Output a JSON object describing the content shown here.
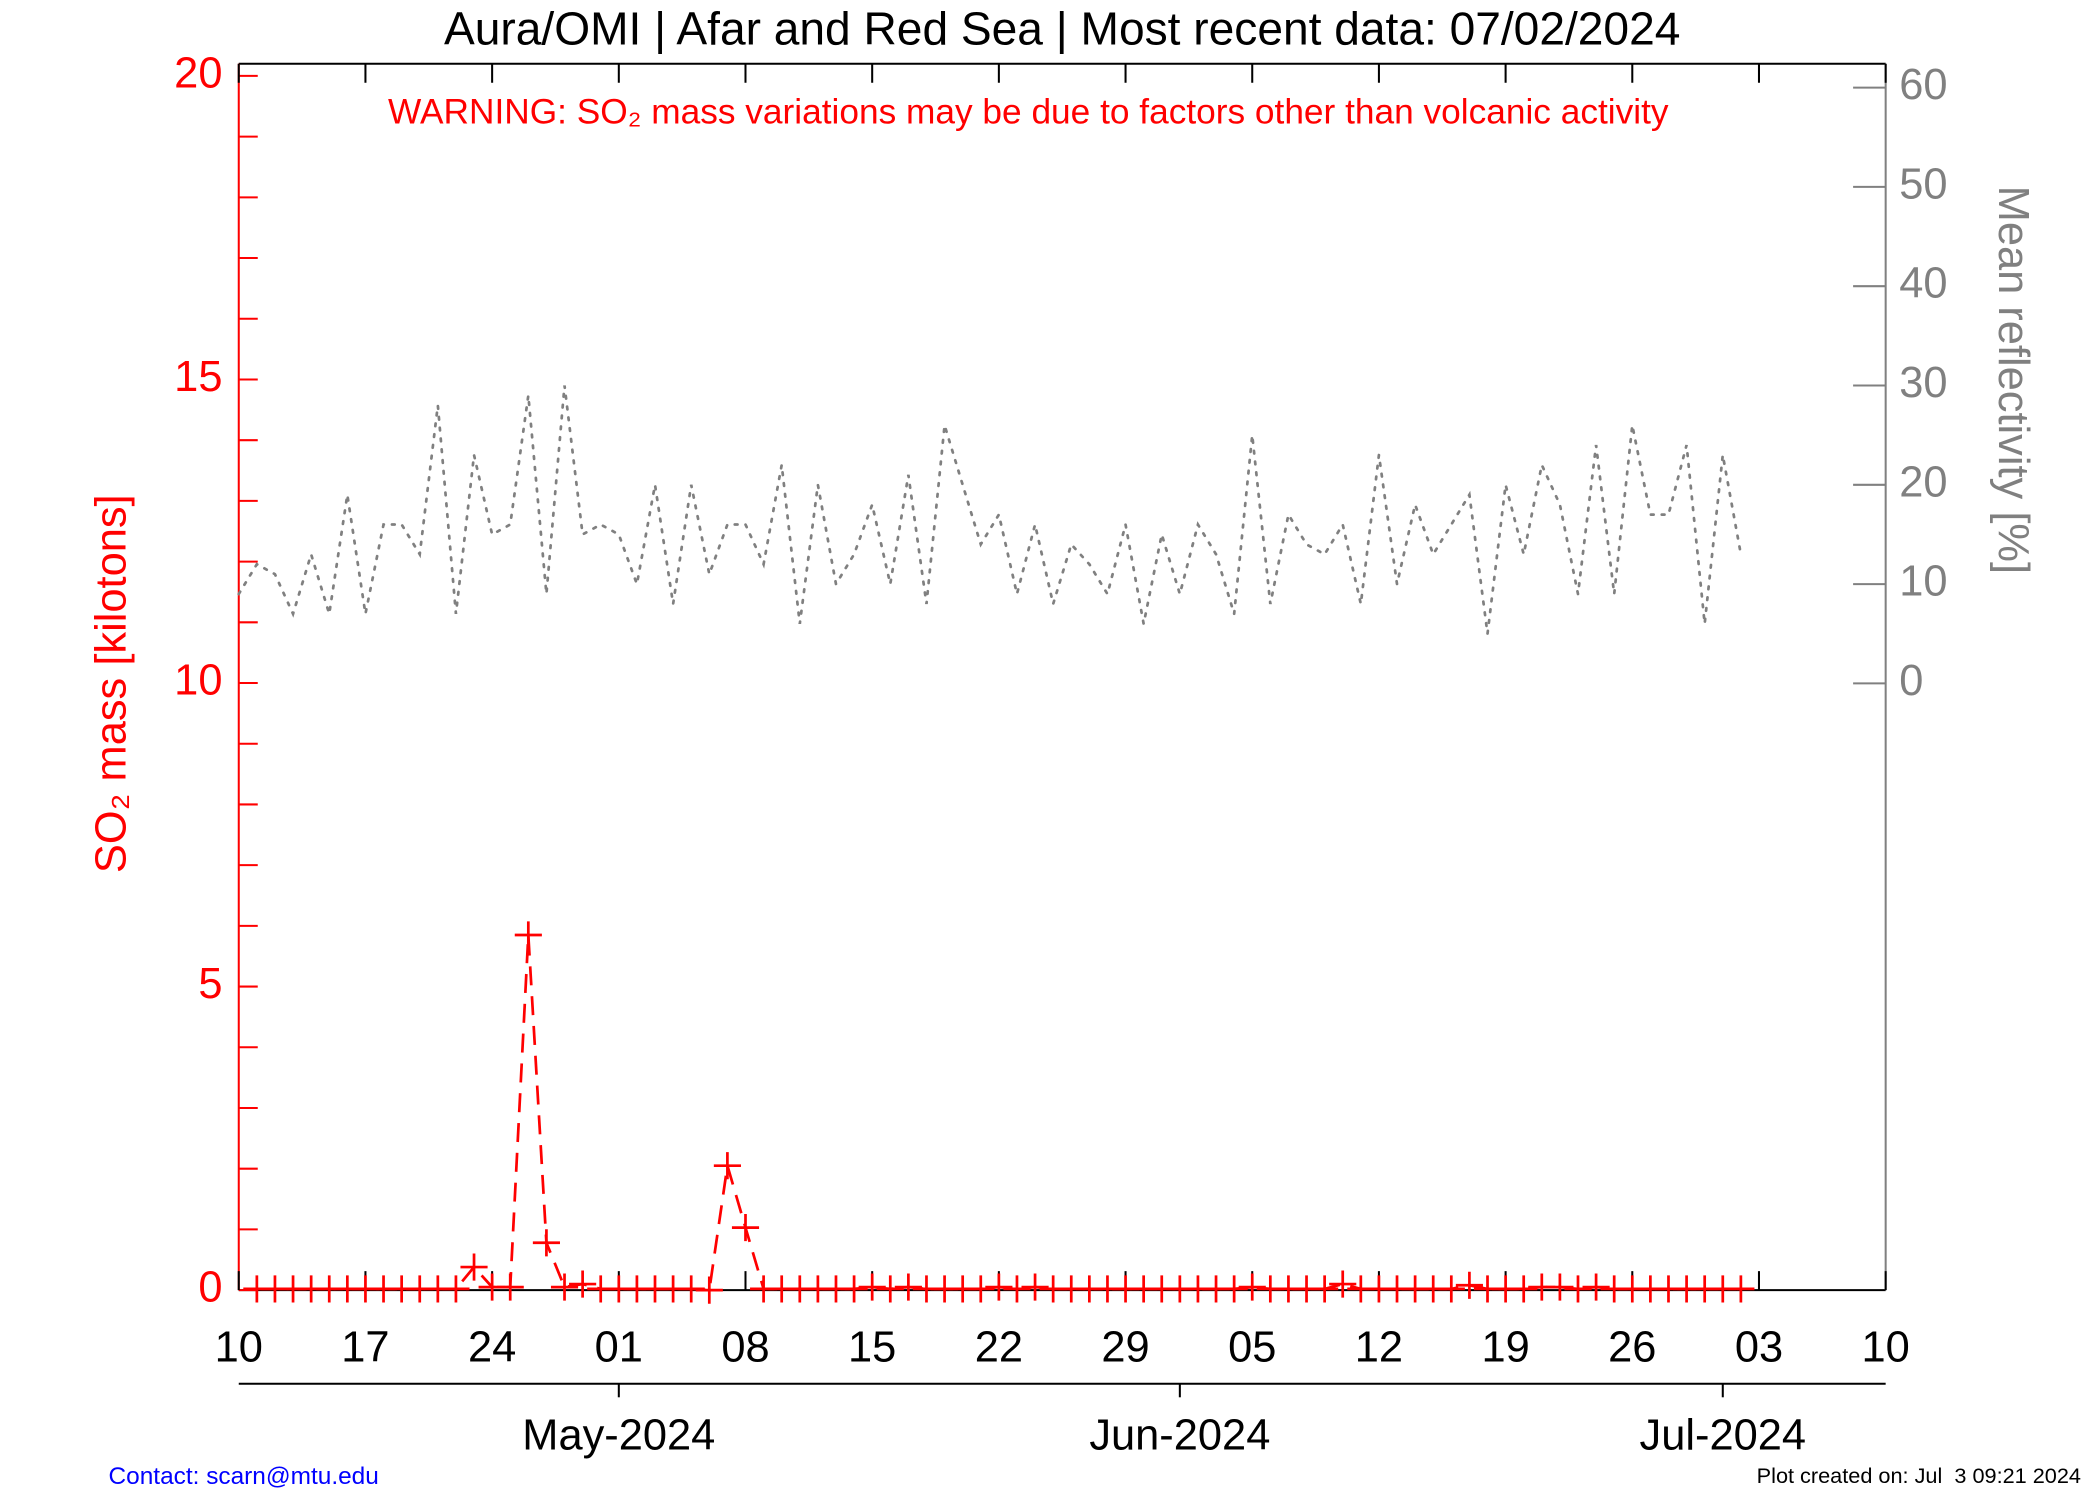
{
  "chart_data": {
    "type": "line",
    "title": "Aura/OMI | Afar and Red Sea | Most recent data: 07/02/2024",
    "annotation": "WARNING: SO₂ mass variations may be due to factors other than volcanic activity",
    "ylabel": "SO₂ mass [kilotons]",
    "y2label": "Mean reflectivity [%]",
    "contact": "Contact: scarn@mtu.edu",
    "created": "Plot created on: Jul  3 09:21 2024",
    "xlim": [
      "2024-04-10",
      "2024-07-10"
    ],
    "xticks": [
      {
        "value": "2024-04-10",
        "label": "10"
      },
      {
        "value": "2024-04-17",
        "label": "17"
      },
      {
        "value": "2024-04-24",
        "label": "24"
      },
      {
        "value": "2024-05-01",
        "label": "01"
      },
      {
        "value": "2024-05-08",
        "label": "08"
      },
      {
        "value": "2024-05-15",
        "label": "15"
      },
      {
        "value": "2024-05-22",
        "label": "22"
      },
      {
        "value": "2024-05-29",
        "label": "29"
      },
      {
        "value": "2024-06-05",
        "label": "05"
      },
      {
        "value": "2024-06-12",
        "label": "12"
      },
      {
        "value": "2024-06-19",
        "label": "19"
      },
      {
        "value": "2024-06-26",
        "label": "26"
      },
      {
        "value": "2024-07-03",
        "label": "03"
      },
      {
        "value": "2024-07-10",
        "label": "10"
      }
    ],
    "monthticks": [
      {
        "value": "2024-05-01",
        "label": "May-2024"
      },
      {
        "value": "2024-06-01",
        "label": "Jun-2024"
      },
      {
        "value": "2024-07-01",
        "label": "Jul-2024"
      }
    ],
    "ylim": [
      0,
      20.2
    ],
    "yticks": [
      0,
      5,
      10,
      15,
      20
    ],
    "yminorticks": [
      1,
      2,
      3,
      4,
      6,
      7,
      8,
      9,
      11,
      12,
      13,
      14,
      16,
      17,
      18,
      19
    ],
    "y2lim": [
      -61.1,
      62.4
    ],
    "y2ticks": [
      0,
      10,
      20,
      30,
      40,
      50,
      60
    ],
    "x": [
      "2024-04-10",
      "2024-04-11",
      "2024-04-12",
      "2024-04-13",
      "2024-04-14",
      "2024-04-15",
      "2024-04-16",
      "2024-04-17",
      "2024-04-18",
      "2024-04-19",
      "2024-04-20",
      "2024-04-21",
      "2024-04-22",
      "2024-04-23",
      "2024-04-24",
      "2024-04-25",
      "2024-04-26",
      "2024-04-27",
      "2024-04-28",
      "2024-04-29",
      "2024-04-30",
      "2024-05-01",
      "2024-05-02",
      "2024-05-03",
      "2024-05-04",
      "2024-05-05",
      "2024-05-06",
      "2024-05-07",
      "2024-05-08",
      "2024-05-09",
      "2024-05-10",
      "2024-05-11",
      "2024-05-12",
      "2024-05-13",
      "2024-05-14",
      "2024-05-15",
      "2024-05-16",
      "2024-05-17",
      "2024-05-18",
      "2024-05-19",
      "2024-05-20",
      "2024-05-21",
      "2024-05-22",
      "2024-05-23",
      "2024-05-24",
      "2024-05-25",
      "2024-05-26",
      "2024-05-27",
      "2024-05-28",
      "2024-05-29",
      "2024-05-30",
      "2024-05-31",
      "2024-06-01",
      "2024-06-02",
      "2024-06-03",
      "2024-06-04",
      "2024-06-05",
      "2024-06-06",
      "2024-06-07",
      "2024-06-08",
      "2024-06-09",
      "2024-06-10",
      "2024-06-11",
      "2024-06-12",
      "2024-06-13",
      "2024-06-14",
      "2024-06-15",
      "2024-06-16",
      "2024-06-17",
      "2024-06-18",
      "2024-06-19",
      "2024-06-20",
      "2024-06-21",
      "2024-06-22",
      "2024-06-23",
      "2024-06-24",
      "2024-06-25",
      "2024-06-26",
      "2024-06-27",
      "2024-06-28",
      "2024-06-29",
      "2024-06-30",
      "2024-07-01",
      "2024-07-02"
    ],
    "series": [
      {
        "name": "SO₂ mass",
        "color": "#ff0000",
        "axis": "y",
        "values": [
          null,
          0.02,
          0.02,
          0.02,
          0.02,
          0.02,
          0.02,
          0.02,
          0.02,
          0.02,
          0.02,
          0.02,
          0.02,
          0.38,
          0.05,
          0.05,
          5.85,
          0.78,
          0.05,
          0.1,
          0.02,
          0.02,
          0.02,
          0.02,
          0.02,
          0.02,
          0,
          2.05,
          1.03,
          0.02,
          0.02,
          0.02,
          0.02,
          0.02,
          0.02,
          0.05,
          0.02,
          0.05,
          0.02,
          0.02,
          0.02,
          0.02,
          0.05,
          0.02,
          0.05,
          0.02,
          0.02,
          0.02,
          0.02,
          0.02,
          0.02,
          0.02,
          0.02,
          0.02,
          0.02,
          0.02,
          0.05,
          0.02,
          0.02,
          0.02,
          0.02,
          0.1,
          0.02,
          0.02,
          0.02,
          0.02,
          0.02,
          0.02,
          0.08,
          0.02,
          0.02,
          0.02,
          0.05,
          0.05,
          0.02,
          0.05,
          0.02,
          0.02,
          0.02,
          0.02,
          0.02,
          0.02,
          0.02,
          0.02
        ]
      },
      {
        "name": "Mean reflectivity",
        "color": "#808080",
        "axis": "y2",
        "values": [
          9,
          12,
          11,
          7,
          13,
          7,
          19,
          7,
          16,
          16,
          13,
          28,
          7,
          23,
          15,
          16,
          29,
          9,
          30,
          15,
          16,
          15,
          10,
          20,
          8,
          20,
          11,
          16,
          16,
          12,
          22,
          6,
          20,
          10,
          13,
          18,
          10,
          21,
          8,
          26,
          20,
          14,
          17,
          9,
          16,
          8,
          14,
          12,
          9,
          16,
          6,
          15,
          9,
          16,
          13,
          7,
          25,
          8,
          17,
          14,
          13,
          16,
          8,
          23,
          10,
          18,
          13,
          16,
          19,
          5,
          20,
          13,
          22,
          18,
          9,
          24,
          9,
          26,
          17,
          17,
          24,
          6,
          23,
          13
        ]
      }
    ]
  }
}
